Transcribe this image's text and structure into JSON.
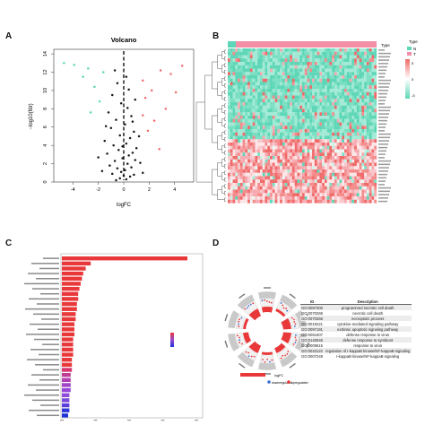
{
  "panels": {
    "a": "A",
    "b": "B",
    "c": "C",
    "d": "D"
  },
  "volcano": {
    "title": "Volcano",
    "xlabel": "logFC",
    "ylabel": "−log10(fdr)",
    "xticks": [
      "-4",
      "-2",
      "0",
      "2",
      "4"
    ],
    "yticks": [
      "0",
      "2",
      "4",
      "6",
      "8",
      "10",
      "12",
      "14"
    ]
  },
  "heatmap": {
    "legend_title": "Type",
    "legend_items": [
      "N",
      "T"
    ],
    "scale_ticks": [
      "5",
      "0",
      "-5"
    ]
  },
  "go_table": {
    "headers": [
      "ID",
      "Description"
    ],
    "rows": [
      [
        "GO:0097300",
        "programmed necrotic cell death"
      ],
      [
        "GO:0070265",
        "necrotic cell death"
      ],
      [
        "GO:0070266",
        "necroptotic process"
      ],
      [
        "GO:0019221",
        "cytokine-mediated signaling pathway"
      ],
      [
        "GO:0097191",
        "extrinsic apoptotic signaling pathway"
      ],
      [
        "GO:0051607",
        "defense response to virus"
      ],
      [
        "GO:0140546",
        "defense response to symbiont"
      ],
      [
        "GO:0009615",
        "response to virus"
      ],
      [
        "GO:0043122",
        "regulation of I-kappaB kinase/NF-kappaB signaling"
      ],
      [
        "GO:0007249",
        "I-kappaB kinase/NF-kappaB signaling"
      ]
    ]
  },
  "go_legend": {
    "title": "logFC",
    "items": [
      "downregulated",
      "upregulated"
    ]
  },
  "colors": {
    "red": "#e63c3c",
    "teal": "#5cd6b6",
    "pink": "#f6aab0",
    "blue": "#1c32d8",
    "purple": "#9b4ad0"
  },
  "chart_data": [
    {
      "type": "scatter",
      "title": "Volcano",
      "xlabel": "logFC",
      "ylabel": "−log10(fdr)",
      "xlim": [
        -5.5,
        5.5
      ],
      "ylim": [
        0,
        14.5
      ],
      "threshold_x": 0,
      "series": [
        {
          "color": "#1a1a1a",
          "points": [
            [
              -0.6,
              0.2
            ],
            [
              -0.3,
              0.4
            ],
            [
              0.2,
              0.3
            ],
            [
              0.5,
              0.6
            ],
            [
              -0.9,
              0.9
            ],
            [
              0.8,
              0.8
            ],
            [
              -0.2,
              1.1
            ],
            [
              0.1,
              1.3
            ],
            [
              -0.5,
              1.5
            ],
            [
              0.6,
              1.6
            ],
            [
              -1.1,
              1.8
            ],
            [
              0.3,
              2.0
            ],
            [
              -0.7,
              2.3
            ],
            [
              0.9,
              2.4
            ],
            [
              -0.1,
              2.6
            ],
            [
              0.4,
              2.9
            ],
            [
              -1.3,
              3.1
            ],
            [
              0.7,
              3.2
            ],
            [
              -0.4,
              3.5
            ],
            [
              1.0,
              3.7
            ],
            [
              -0.8,
              4.0
            ],
            [
              0.2,
              4.2
            ],
            [
              -1.5,
              4.5
            ],
            [
              0.5,
              4.8
            ],
            [
              -0.3,
              5.1
            ],
            [
              0.8,
              5.5
            ],
            [
              -1.0,
              5.9
            ],
            [
              0.1,
              6.3
            ],
            [
              -0.6,
              6.8
            ],
            [
              0.6,
              7.2
            ],
            [
              -1.2,
              7.6
            ],
            [
              0.3,
              8.1
            ],
            [
              -0.2,
              8.6
            ],
            [
              0.9,
              9.0
            ],
            [
              -0.9,
              9.5
            ],
            [
              0.4,
              10.1
            ],
            [
              -0.5,
              10.8
            ],
            [
              0.2,
              11.5
            ],
            [
              -1.4,
              6.1
            ],
            [
              1.2,
              5.0
            ],
            [
              -2.0,
              2.7
            ],
            [
              1.3,
              2.1
            ],
            [
              -1.7,
              1.2
            ],
            [
              1.5,
              1.0
            ],
            [
              0.0,
              0.7
            ],
            [
              -0.1,
              3.9
            ],
            [
              0.7,
              6.6
            ],
            [
              -0.7,
              12.2
            ]
          ]
        },
        {
          "color": "#5cd6b6",
          "points": [
            [
              -4.7,
              13.0
            ],
            [
              -3.9,
              12.8
            ],
            [
              -2.8,
              12.4
            ],
            [
              -3.2,
              11.5
            ],
            [
              -2.3,
              10.4
            ],
            [
              -1.9,
              8.8
            ],
            [
              -2.6,
              7.6
            ],
            [
              -1.6,
              12.0
            ]
          ]
        },
        {
          "color": "#f06a6a",
          "points": [
            [
              4.6,
              12.7
            ],
            [
              3.7,
              11.8
            ],
            [
              2.9,
              12.2
            ],
            [
              1.5,
              11.1
            ],
            [
              2.2,
              10.0
            ],
            [
              1.7,
              9.2
            ],
            [
              3.3,
              8.0
            ],
            [
              2.4,
              6.7
            ],
            [
              1.9,
              5.6
            ],
            [
              2.8,
              3.6
            ],
            [
              1.5,
              7.3
            ],
            [
              4.1,
              9.8
            ]
          ]
        }
      ]
    },
    {
      "type": "heatmap",
      "legend_title": "Type",
      "legend_items": [
        "N",
        "T"
      ],
      "scale_ticks": [
        "5",
        "0",
        "-5"
      ]
    },
    {
      "type": "bar",
      "orientation": "horizontal",
      "values": [
        100,
        23,
        19,
        17,
        16,
        15,
        14,
        13,
        13,
        12,
        12,
        11,
        11,
        10,
        10,
        10,
        9,
        9,
        9,
        9,
        8,
        8,
        8,
        7,
        7,
        7,
        7,
        6,
        6,
        6,
        6,
        5
      ],
      "colors": [
        "#e8383a",
        "#e8383a",
        "#e8383a",
        "#e8383a",
        "#e8383a",
        "#e8383a",
        "#e8383a",
        "#e8383a",
        "#e8383a",
        "#e8383a",
        "#e8383a",
        "#e8383a",
        "#e8383a",
        "#e8383a",
        "#e8383a",
        "#e8383a",
        "#e8383a",
        "#e8383a",
        "#e8383a",
        "#e8383a",
        "#e8383a",
        "#e8383a",
        "#d6366e",
        "#c03c94",
        "#b040b4",
        "#a044c8",
        "#9548d6",
        "#8e4ad8",
        "#7a4ad8",
        "#5a40d8",
        "#2d36d8",
        "#1c32d8"
      ]
    }
  ]
}
